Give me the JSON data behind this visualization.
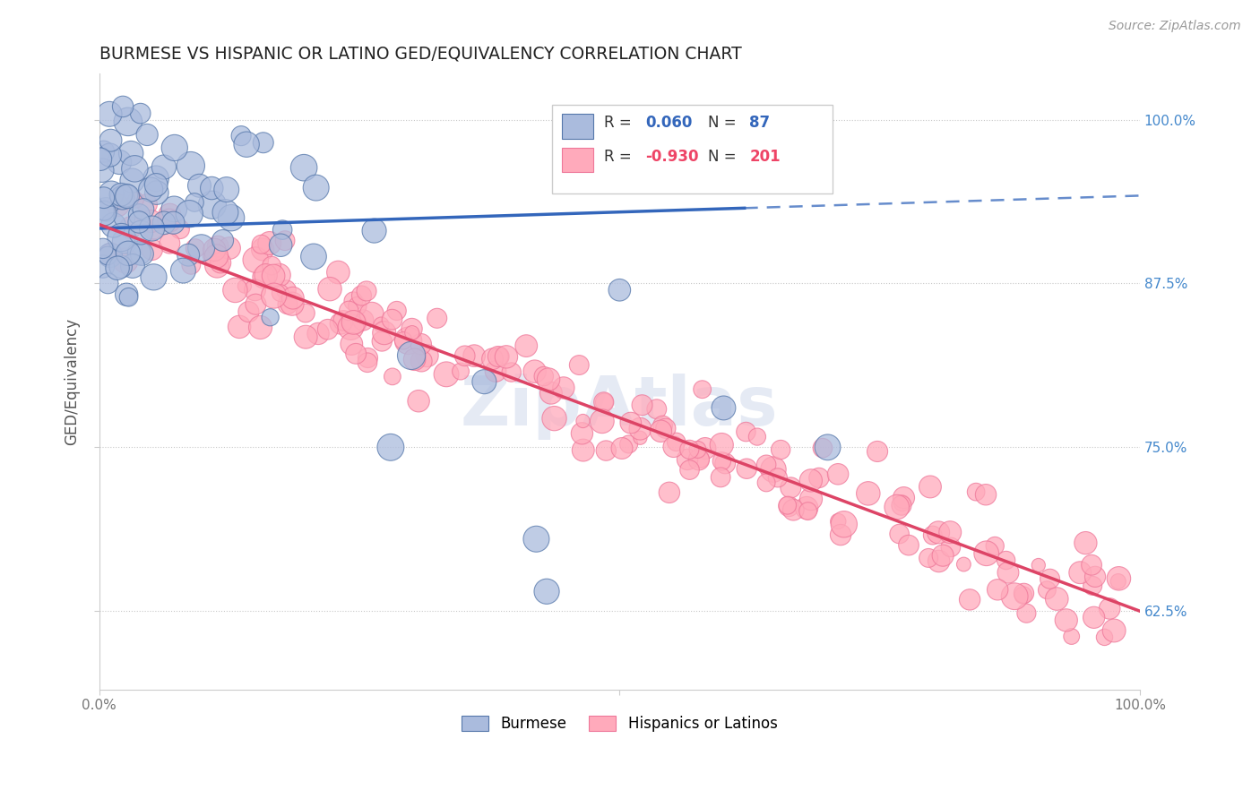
{
  "title": "BURMESE VS HISPANIC OR LATINO GED/EQUIVALENCY CORRELATION CHART",
  "source": "Source: ZipAtlas.com",
  "ylabel": "GED/Equivalency",
  "y_tick_labels": [
    "100.0%",
    "87.5%",
    "75.0%",
    "62.5%"
  ],
  "y_tick_vals": [
    1.0,
    0.875,
    0.75,
    0.625
  ],
  "xlim": [
    0.0,
    1.0
  ],
  "ylim": [
    0.565,
    1.035
  ],
  "burmese_R": 0.06,
  "burmese_N": 87,
  "hispanic_R": -0.93,
  "hispanic_N": 201,
  "blue_fill": "#AABBDD",
  "blue_edge": "#5577AA",
  "pink_fill": "#FFAABB",
  "pink_edge": "#EE7799",
  "blue_line_color": "#3366BB",
  "pink_line_color": "#DD4466",
  "background_color": "#FFFFFF",
  "grid_color": "#BBBBBB",
  "title_color": "#222222",
  "source_color": "#999999",
  "axis_label_color": "#555555",
  "right_tick_color": "#4488CC",
  "watermark_text": "ZipAtlas",
  "watermark_color": "#AABBDD",
  "blue_line_start_x": 0.0,
  "blue_line_solid_end_x": 0.62,
  "blue_line_end_x": 1.0,
  "blue_line_start_y": 0.917,
  "blue_line_end_y": 0.942,
  "pink_line_start_x": 0.0,
  "pink_line_end_x": 1.0,
  "pink_line_start_y": 0.92,
  "pink_line_end_y": 0.625
}
